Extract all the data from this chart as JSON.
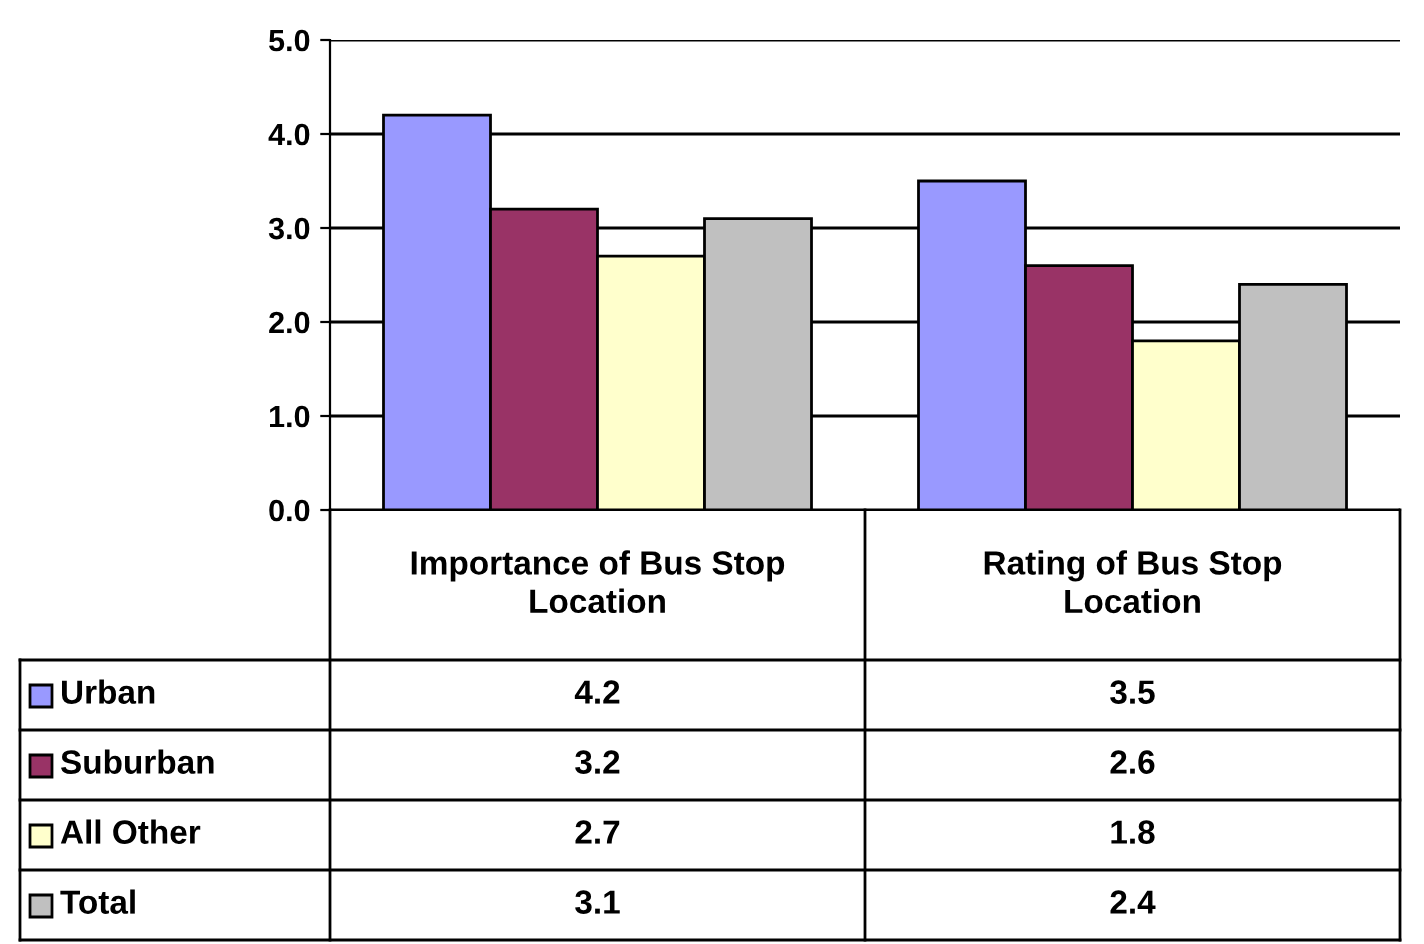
{
  "chart_data": {
    "type": "bar",
    "categories": [
      "Importance of Bus Stop\nLocation",
      "Rating of Bus Stop\nLocation"
    ],
    "series": [
      {
        "name": "Urban",
        "color": "#9999ff",
        "values": [
          4.2,
          3.5
        ]
      },
      {
        "name": "Suburban",
        "color": "#993366",
        "values": [
          3.2,
          2.6
        ]
      },
      {
        "name": "All Other",
        "color": "#ffffcc",
        "values": [
          2.7,
          1.8
        ]
      },
      {
        "name": "Total",
        "color": "#c0c0c0",
        "values": [
          3.1,
          2.4
        ]
      }
    ],
    "ylim": [
      0,
      5
    ],
    "yticks": [
      {
        "value": 0,
        "label": "0.0"
      },
      {
        "value": 1,
        "label": "1.0"
      },
      {
        "value": 2,
        "label": "2.0"
      },
      {
        "value": 3,
        "label": "3.0"
      },
      {
        "value": 4,
        "label": "4.0"
      },
      {
        "value": 5,
        "label": "5.0"
      }
    ],
    "grid": "y",
    "data_labels": true,
    "legend": "bottom"
  }
}
